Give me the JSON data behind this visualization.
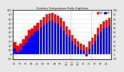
{
  "title": "Outdoor Temperature Daily High/Low",
  "bg_color": "#e8e8e8",
  "plot_bg": "#ffffff",
  "high_color": "#ff0000",
  "low_color": "#0000ff",
  "dashed_color": "#999999",
  "categories": [
    "1/1",
    "",
    "2/1",
    "",
    "3/1",
    "",
    "4/1",
    "",
    "5/1",
    "",
    "6/1",
    "",
    "7/1",
    "",
    "8/1",
    "",
    "9/1",
    "",
    "10/1",
    "",
    "11/1",
    "",
    "12/1",
    "",
    "1/1",
    "",
    "2/1",
    "",
    "3/1",
    "",
    "4/1",
    "",
    "5/1",
    ""
  ],
  "highs": [
    28,
    20,
    24,
    34,
    42,
    55,
    58,
    65,
    72,
    78,
    85,
    90,
    92,
    94,
    90,
    88,
    82,
    74,
    64,
    56,
    44,
    36,
    30,
    24,
    22,
    16,
    30,
    38,
    46,
    60,
    68,
    74,
    78,
    82
  ],
  "lows": [
    14,
    5,
    10,
    20,
    26,
    38,
    42,
    50,
    54,
    62,
    66,
    72,
    74,
    76,
    72,
    70,
    62,
    54,
    44,
    40,
    30,
    22,
    16,
    10,
    8,
    -4,
    14,
    22,
    30,
    42,
    50,
    58,
    60,
    65
  ],
  "ylim": [
    -10,
    100
  ],
  "yticks_left": [
    -10,
    0,
    10,
    20,
    30,
    40,
    50,
    60,
    70,
    80,
    90,
    100
  ],
  "yticks_right": [
    -10,
    0,
    10,
    20,
    30,
    40,
    50,
    60,
    70,
    80,
    90,
    100
  ],
  "dashed_range": [
    20,
    26
  ],
  "legend_high": "High",
  "legend_low": "Low",
  "bar_width": 0.85,
  "n_bars": 34
}
